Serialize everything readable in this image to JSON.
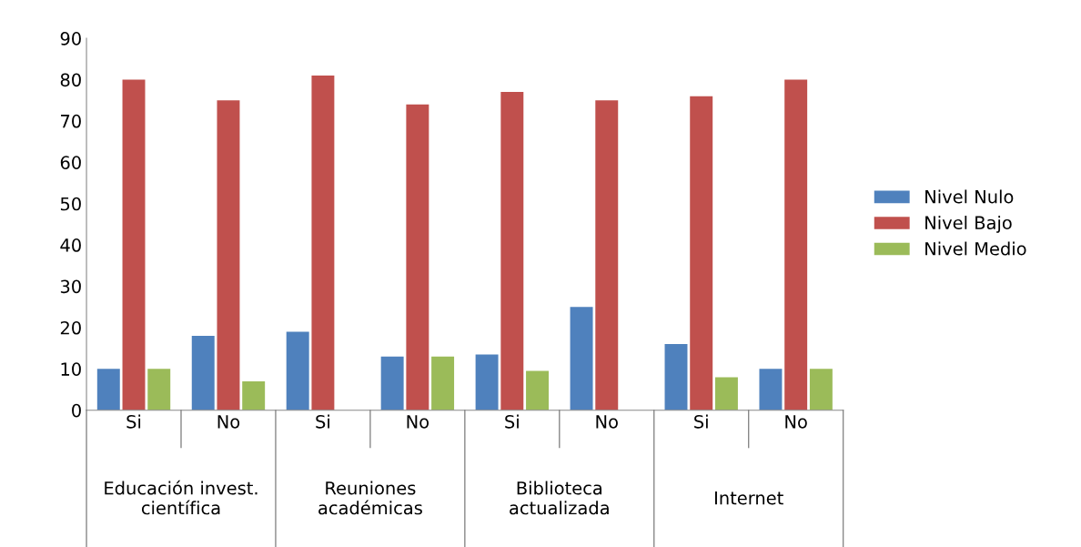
{
  "chart_data": {
    "type": "bar",
    "categories": [
      "Si",
      "No",
      "Si",
      "No",
      "Si",
      "No",
      "Si",
      "No"
    ],
    "series": [
      {
        "name": "Nivel Nulo",
        "color": "#4f81bd",
        "values": [
          10,
          18,
          19,
          13,
          13.5,
          25,
          16,
          10
        ]
      },
      {
        "name": "Nivel Bajo",
        "color": "#c0504d",
        "values": [
          80,
          75,
          81,
          74,
          77,
          75,
          76,
          80
        ]
      },
      {
        "name": "Nivel Medio",
        "color": "#9bbb59",
        "values": [
          10,
          7,
          0,
          13,
          9.5,
          0,
          8,
          10
        ]
      }
    ],
    "annotations": [
      "Educación invest. científica",
      "Reuniones académicas",
      "Biblioteca actualizada",
      "Internet"
    ],
    "ylim": [
      0,
      90
    ],
    "yticks": [
      0,
      10,
      20,
      30,
      40,
      50,
      60,
      70,
      80,
      90
    ],
    "grid": false,
    "legend": "right"
  }
}
